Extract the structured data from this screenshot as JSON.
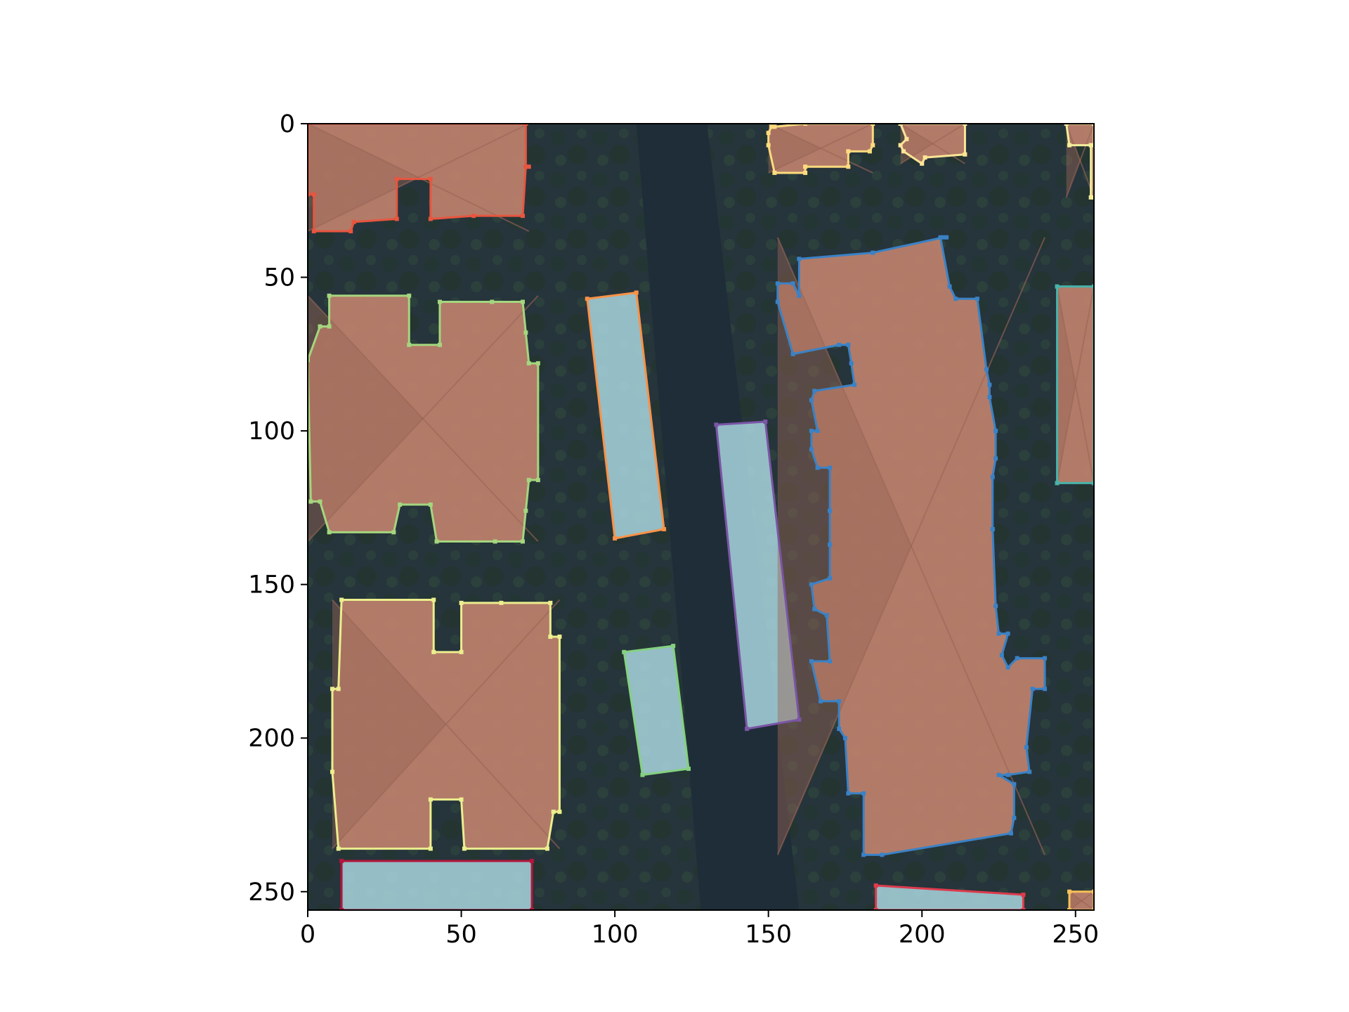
{
  "figure": {
    "image_extent": {
      "width": 256,
      "height": 256
    },
    "x_ticks": [
      0,
      50,
      100,
      150,
      200,
      250
    ],
    "y_ticks": [
      0,
      50,
      100,
      150,
      200,
      250
    ],
    "x_tick_labels": [
      "0",
      "50",
      "100",
      "150",
      "200",
      "250"
    ],
    "y_tick_labels": [
      "0",
      "50",
      "100",
      "150",
      "200",
      "250"
    ]
  },
  "scene": {
    "ground_color": "#26343b",
    "road_color": "#1f2d38",
    "vegetation_color": "#2e4338",
    "roof_color": "#b9806b",
    "roof_shade_color": "#9a6656",
    "pool_color": "#a9d6df"
  },
  "annotations": [
    {
      "label": "building",
      "color": "#e8553f",
      "points": [
        [
          0,
          0
        ],
        [
          71,
          0
        ],
        [
          71,
          14
        ],
        [
          72,
          14
        ],
        [
          71,
          14
        ],
        [
          70,
          30
        ],
        [
          54,
          30
        ],
        [
          40,
          31
        ],
        [
          40,
          18
        ],
        [
          29,
          18
        ],
        [
          29,
          31
        ],
        [
          15,
          32
        ],
        [
          14,
          35
        ],
        [
          2,
          35
        ],
        [
          2,
          23
        ],
        [
          0,
          23
        ]
      ]
    },
    {
      "label": "pool",
      "color": "#f99248",
      "points": [
        [
          91,
          57
        ],
        [
          107,
          55
        ],
        [
          116,
          132
        ],
        [
          100,
          135
        ]
      ]
    },
    {
      "label": "building",
      "color": "#a5d67e",
      "points": [
        [
          7,
          56
        ],
        [
          33,
          56
        ],
        [
          33,
          72
        ],
        [
          43,
          72
        ],
        [
          43,
          58
        ],
        [
          60,
          58
        ],
        [
          70,
          58
        ],
        [
          71,
          68
        ],
        [
          72,
          78
        ],
        [
          75,
          78
        ],
        [
          75,
          116
        ],
        [
          72,
          116
        ],
        [
          71,
          126
        ],
        [
          70,
          136
        ],
        [
          61,
          136
        ],
        [
          42,
          136
        ],
        [
          40,
          124
        ],
        [
          30,
          124
        ],
        [
          28,
          133
        ],
        [
          7,
          133
        ],
        [
          4,
          123
        ],
        [
          1,
          123
        ],
        [
          0,
          77
        ],
        [
          4,
          66
        ],
        [
          7,
          66
        ]
      ]
    },
    {
      "label": "building",
      "color": "#ecee8e",
      "points": [
        [
          11,
          155
        ],
        [
          41,
          155
        ],
        [
          41,
          172
        ],
        [
          50,
          172
        ],
        [
          50,
          156
        ],
        [
          63,
          156
        ],
        [
          79,
          156
        ],
        [
          79,
          167
        ],
        [
          82,
          167
        ],
        [
          82,
          224
        ],
        [
          80,
          224
        ],
        [
          78,
          236
        ],
        [
          51,
          236
        ],
        [
          50,
          220
        ],
        [
          40,
          220
        ],
        [
          40,
          236
        ],
        [
          10,
          236
        ],
        [
          8,
          211
        ],
        [
          8,
          184
        ],
        [
          10,
          184
        ]
      ]
    },
    {
      "label": "pool",
      "color": "#84d180",
      "points": [
        [
          103,
          172
        ],
        [
          119,
          170
        ],
        [
          124,
          210
        ],
        [
          109,
          212
        ]
      ]
    },
    {
      "label": "pool",
      "color": "#7b55a6",
      "points": [
        [
          133,
          98
        ],
        [
          149,
          97
        ],
        [
          160,
          194
        ],
        [
          143,
          197
        ]
      ]
    },
    {
      "label": "building",
      "color": "#3a82c6",
      "points": [
        [
          160,
          44
        ],
        [
          184,
          42
        ],
        [
          207,
          37
        ],
        [
          208,
          37
        ],
        [
          206,
          37
        ],
        [
          209,
          53
        ],
        [
          211,
          57
        ],
        [
          218,
          57
        ],
        [
          221,
          80
        ],
        [
          222,
          85
        ],
        [
          222,
          89
        ],
        [
          224,
          100
        ],
        [
          224,
          100
        ],
        [
          224,
          109
        ],
        [
          223,
          115
        ],
        [
          223,
          132
        ],
        [
          223,
          132
        ],
        [
          224,
          157
        ],
        [
          225,
          166
        ],
        [
          228,
          166
        ],
        [
          226,
          173
        ],
        [
          228,
          177
        ],
        [
          231,
          174
        ],
        [
          240,
          174
        ],
        [
          240,
          184
        ],
        [
          236,
          184
        ],
        [
          234,
          203
        ],
        [
          235,
          211
        ],
        [
          228,
          212
        ],
        [
          225,
          212
        ],
        [
          230,
          215
        ],
        [
          230,
          226
        ],
        [
          229,
          231
        ],
        [
          187,
          238
        ],
        [
          181,
          238
        ],
        [
          181,
          218
        ],
        [
          176,
          218
        ],
        [
          175,
          200
        ],
        [
          173,
          197
        ],
        [
          173,
          188
        ],
        [
          167,
          188
        ],
        [
          164,
          175
        ],
        [
          170,
          175
        ],
        [
          169,
          160
        ],
        [
          165,
          158
        ],
        [
          164,
          150
        ],
        [
          170,
          148
        ],
        [
          170,
          137
        ],
        [
          170,
          126
        ],
        [
          170,
          112
        ],
        [
          166,
          112
        ],
        [
          164,
          106
        ],
        [
          164,
          100
        ],
        [
          166,
          100
        ],
        [
          164,
          90
        ],
        [
          165,
          87
        ],
        [
          178,
          85
        ],
        [
          177,
          78
        ],
        [
          176,
          72
        ],
        [
          173,
          72
        ],
        [
          158,
          75
        ],
        [
          153,
          58
        ],
        [
          153,
          52
        ],
        [
          158,
          52
        ],
        [
          160,
          56
        ]
      ]
    },
    {
      "label": "building",
      "color": "#49b3a9",
      "points": [
        [
          244,
          53
        ],
        [
          256,
          53
        ],
        [
          256,
          117
        ],
        [
          244,
          117
        ]
      ]
    },
    {
      "label": "building",
      "color": "#fddb7e",
      "points": [
        [
          162,
          0
        ],
        [
          184,
          0
        ],
        [
          184,
          7
        ],
        [
          183,
          9
        ],
        [
          176,
          9
        ],
        [
          176,
          14
        ],
        [
          162,
          14
        ],
        [
          162,
          16
        ],
        [
          152,
          16
        ],
        [
          150,
          7
        ],
        [
          150,
          3
        ],
        [
          151,
          1
        ],
        [
          152,
          1
        ]
      ]
    },
    {
      "label": "building",
      "color": "#fee596",
      "points": [
        [
          193,
          0
        ],
        [
          214,
          0
        ],
        [
          214,
          10
        ],
        [
          201,
          11
        ],
        [
          200,
          13
        ],
        [
          194,
          9
        ],
        [
          193,
          7
        ],
        [
          195,
          5
        ],
        [
          193,
          0
        ]
      ]
    },
    {
      "label": "building",
      "color": "#f4ee9c",
      "points": [
        [
          247,
          0
        ],
        [
          256,
          0
        ],
        [
          256,
          24
        ],
        [
          255,
          24
        ],
        [
          255,
          7
        ],
        [
          248,
          7
        ]
      ]
    },
    {
      "label": "pool",
      "color": "#b3173c",
      "points": [
        [
          11,
          240
        ],
        [
          73,
          240
        ],
        [
          73,
          256
        ],
        [
          11,
          256
        ]
      ]
    },
    {
      "label": "pool",
      "color": "#dd3b4d",
      "points": [
        [
          185,
          248
        ],
        [
          233,
          251
        ],
        [
          233,
          256
        ],
        [
          185,
          256
        ]
      ]
    },
    {
      "label": "building",
      "color": "#f7c05a",
      "points": [
        [
          248,
          250
        ],
        [
          256,
          250
        ],
        [
          256,
          256
        ],
        [
          248,
          256
        ]
      ]
    }
  ]
}
